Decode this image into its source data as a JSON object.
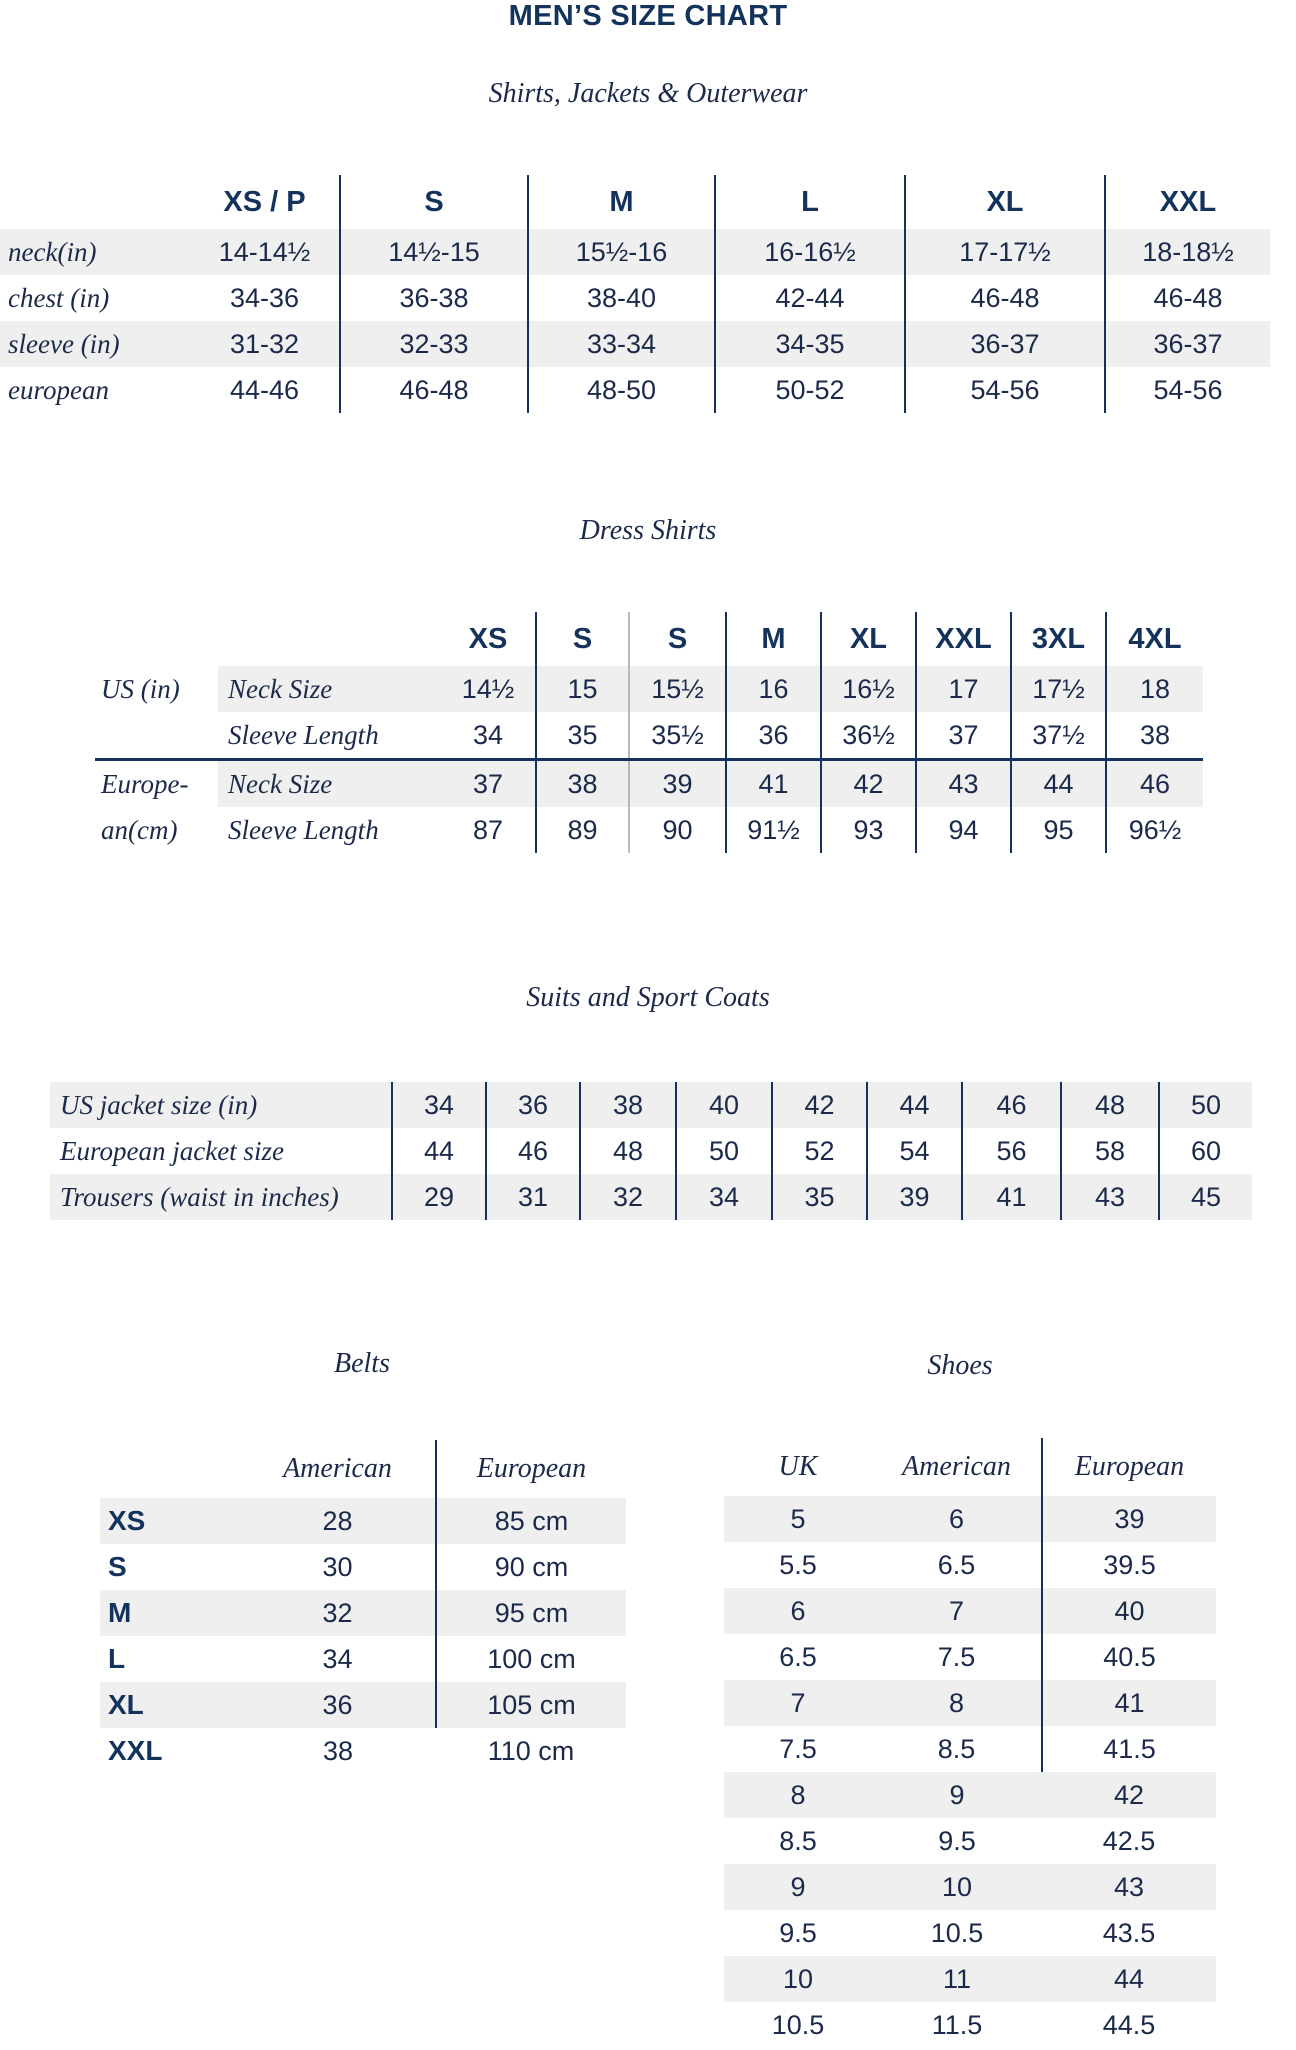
{
  "title": "MEN’S SIZE CHART",
  "shirts": {
    "subtitle": "Shirts, Jackets & Outerwear",
    "columns": [
      "XS / P",
      "S",
      "M",
      "L",
      "XL",
      "XXL"
    ],
    "rows": [
      {
        "label": "neck(in)",
        "values": [
          "14-14½",
          "14½-15",
          "15½-16",
          "16-16½",
          "17-17½",
          "18-18½"
        ]
      },
      {
        "label": "chest (in)",
        "values": [
          "34-36",
          "36-38",
          "38-40",
          "42-44",
          "46-48",
          "46-48"
        ]
      },
      {
        "label": "sleeve (in)",
        "values": [
          "31-32",
          "32-33",
          "33-34",
          "34-35",
          "36-37",
          "36-37"
        ]
      },
      {
        "label": "european",
        "values": [
          "44-46",
          "46-48",
          "48-50",
          "50-52",
          "54-56",
          "54-56"
        ]
      }
    ]
  },
  "dress": {
    "subtitle": "Dress Shirts",
    "columns": [
      "XS",
      "S",
      "S",
      "M",
      "XL",
      "XXL",
      "3XL",
      "4XL"
    ],
    "us_label": "US (in)",
    "eu_label_line1": "Europe-",
    "eu_label_line2": "an(cm)",
    "rows": [
      {
        "label": "Neck Size",
        "values": [
          "14½",
          "15",
          "15½",
          "16",
          "16½",
          "17",
          "17½",
          "18"
        ]
      },
      {
        "label": "Sleeve Length",
        "values": [
          "34",
          "35",
          "35½",
          "36",
          "36½",
          "37",
          "37½",
          "38"
        ]
      },
      {
        "label": "Neck Size",
        "values": [
          "37",
          "38",
          "39",
          "41",
          "42",
          "43",
          "44",
          "46"
        ]
      },
      {
        "label": "Sleeve Length",
        "values": [
          "87",
          "89",
          "90",
          "91½",
          "93",
          "94",
          "95",
          "96½"
        ]
      }
    ]
  },
  "suits": {
    "subtitle": "Suits and Sport Coats",
    "rows": [
      {
        "label": "US jacket size (in)",
        "values": [
          "34",
          "36",
          "38",
          "40",
          "42",
          "44",
          "46",
          "48",
          "50"
        ]
      },
      {
        "label": "European jacket size",
        "values": [
          "44",
          "46",
          "48",
          "50",
          "52",
          "54",
          "56",
          "58",
          "60"
        ]
      },
      {
        "label": "Trousers (waist in inches)",
        "values": [
          "29",
          "31",
          "32",
          "34",
          "35",
          "39",
          "41",
          "43",
          "45"
        ]
      }
    ]
  },
  "belts": {
    "subtitle": "Belts",
    "columns": [
      "American",
      "European"
    ],
    "rows": [
      {
        "size": "XS",
        "american": "28",
        "european": "85 cm"
      },
      {
        "size": "S",
        "american": "30",
        "european": "90 cm"
      },
      {
        "size": "M",
        "american": "32",
        "european": "95 cm"
      },
      {
        "size": "L",
        "american": "34",
        "european": "100 cm"
      },
      {
        "size": "XL",
        "american": "36",
        "european": "105 cm"
      },
      {
        "size": "XXL",
        "american": "38",
        "european": "110 cm"
      }
    ]
  },
  "shoes": {
    "subtitle": "Shoes",
    "columns": [
      "UK",
      "American",
      "European"
    ],
    "rows": [
      [
        "5",
        "6",
        "39"
      ],
      [
        "5.5",
        "6.5",
        "39.5"
      ],
      [
        "6",
        "7",
        "40"
      ],
      [
        "6.5",
        "7.5",
        "40.5"
      ],
      [
        "7",
        "8",
        "41"
      ],
      [
        "7.5",
        "8.5",
        "41.5"
      ],
      [
        "8",
        "9",
        "42"
      ],
      [
        "8.5",
        "9.5",
        "42.5"
      ],
      [
        "9",
        "10",
        "43"
      ],
      [
        "9.5",
        "10.5",
        "43.5"
      ],
      [
        "10",
        "11",
        "44"
      ],
      [
        "10.5",
        "11.5",
        "44.5"
      ]
    ]
  },
  "colors": {
    "navy": "#13325c",
    "text": "#1b2a4a",
    "shade": "#efefef"
  }
}
